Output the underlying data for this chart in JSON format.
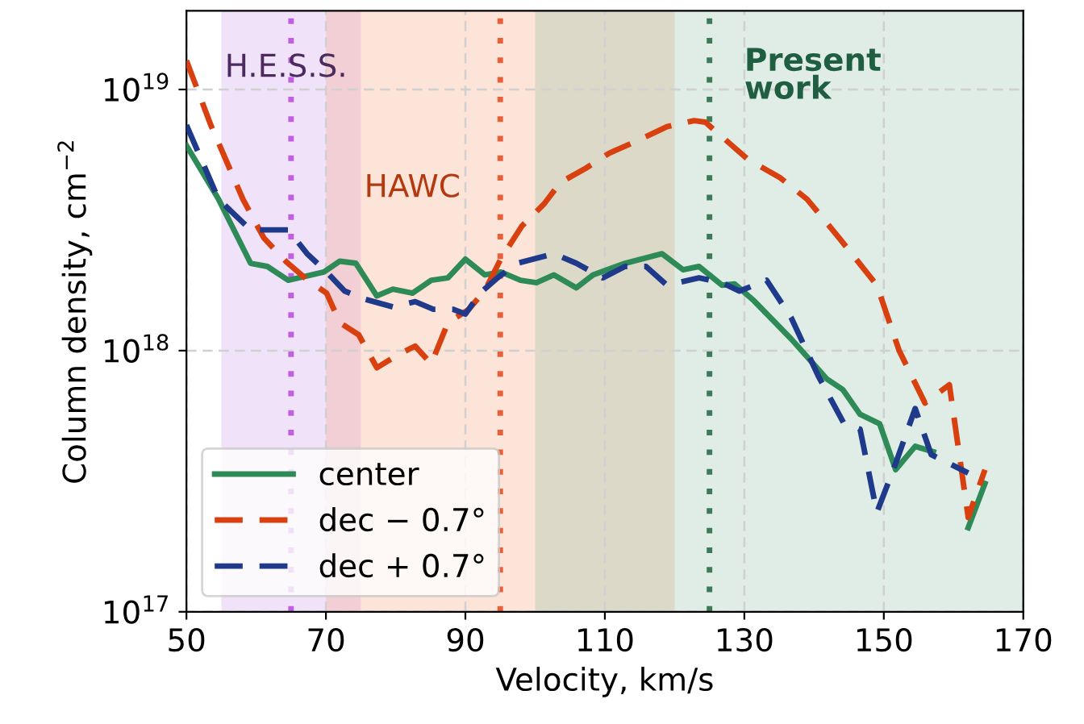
{
  "chart_data": {
    "type": "line",
    "xlabel": "Velocity, km/s",
    "ylabel": "Column density, cm$^{−2}$",
    "log": "y",
    "xlim": [
      50,
      170
    ],
    "ylim": [
      1e+17,
      2e+19
    ],
    "xticks": [
      50,
      70,
      90,
      110,
      130,
      150,
      170
    ],
    "yticks": [
      {
        "value": 1e+17,
        "label": "10$^{17}$"
      },
      {
        "value": 1e+18,
        "label": "10$^{18}$"
      },
      {
        "value": 1e+19,
        "label": "10$^{19}$"
      }
    ],
    "grid": true,
    "legend": "bottom left",
    "marker": "none",
    "bands": [
      {
        "axis": "x",
        "from": 55,
        "to": 75,
        "label": "H.E.S.S.",
        "color": "#c58ee6"
      },
      {
        "axis": "x",
        "from": 70,
        "to": 120,
        "label": "HAWC",
        "color": "#f79466"
      },
      {
        "axis": "x",
        "from": 100,
        "to": 170,
        "label": "Present work",
        "color": "#80b89a"
      }
    ],
    "ref_lines": [
      {
        "axis": "x",
        "value": 65,
        "color": "#c060e0",
        "line_style": "dotted"
      },
      {
        "axis": "x",
        "value": 95,
        "color": "#e8603a",
        "line_style": "dotted"
      },
      {
        "axis": "x",
        "value": 125,
        "color": "#3d7a5a",
        "line_style": "dotted"
      }
    ],
    "series": [
      {
        "name": "center",
        "color": "#2e8b57",
        "line_style": "solid",
        "x": [
          50,
          54.6,
          59.2,
          61.6,
          64.6,
          69.7,
          72,
          74.3,
          77.3,
          79.6,
          82.4,
          85.1,
          87.5,
          90,
          92.8,
          95.1,
          97.9,
          100.2,
          102.7,
          105.9,
          108.3,
          112.9,
          118.2,
          121.2,
          123.5,
          126.8,
          128.6,
          131.4,
          136.7,
          141.8,
          144.1,
          146.6,
          149.4,
          151.7,
          154.5,
          157.1,
          158,
          162.1,
          164.5
        ],
        "values": [
          6.1e+18,
          3.8e+18,
          2.16e+18,
          2.1e+18,
          1.86e+18,
          2e+18,
          2.2e+18,
          2.16e+18,
          1.62e+18,
          1.72e+18,
          1.66e+18,
          1.86e+18,
          1.9e+18,
          2.24e+18,
          1.95e+18,
          2e+18,
          1.86e+18,
          1.82e+18,
          1.95e+18,
          1.74e+18,
          1.95e+18,
          2.16e+18,
          2.35e+18,
          2.04e+18,
          2.1e+18,
          1.78e+18,
          1.8e+18,
          1.55e+18,
          1.11e+18,
          7.8e+17,
          7.1e+17,
          5.7e+17,
          5.25e+17,
          3.5e+17,
          4.3e+17,
          4.1e+17,
          null,
          2.1e+17,
          3.1e+17
        ]
      },
      {
        "name": "dec − 0.7°",
        "color": "#d9400f",
        "line_style": "dashed",
        "x": [
          50,
          53.5,
          58.1,
          61.1,
          64.3,
          67.3,
          70.1,
          72,
          74.7,
          77.3,
          80.5,
          82.8,
          85.1,
          87.5,
          90.5,
          92.8,
          95.1,
          98.1,
          101.3,
          103.6,
          107.3,
          110.6,
          114.3,
          118.9,
          122.8,
          124.4,
          130.5,
          135.1,
          139,
          143.6,
          149,
          152.2,
          155.9,
          159.4,
          162.1,
          164.5
        ],
        "values": [
          1.29e+19,
          7.3e+18,
          3.8e+18,
          2.7e+18,
          2.19e+18,
          1.87e+18,
          1.66e+18,
          1.28e+18,
          1.15e+18,
          8.6e+17,
          9.7e+17,
          1.04e+18,
          8.9e+17,
          1.28e+18,
          1.44e+18,
          1.7e+18,
          2.25e+18,
          3e+18,
          3.65e+18,
          4.4e+18,
          5e+18,
          5.7e+18,
          6.3e+18,
          7.2e+18,
          7.6e+18,
          7.5e+18,
          5.4e+18,
          4.6e+18,
          3.8e+18,
          2.7e+18,
          1.78e+18,
          1e+18,
          6.3e+17,
          7.4e+17,
          2.3e+17,
          3.5e+17
        ]
      },
      {
        "name": "dec + 0.7°",
        "color": "#1f3a8a",
        "line_style": "dashed",
        "x": [
          50,
          54.6,
          59.2,
          61.6,
          64.6,
          67.3,
          70.1,
          72.7,
          75.4,
          79.6,
          82.8,
          85.4,
          88.2,
          90,
          92.1,
          94.6,
          97.4,
          102.7,
          105.9,
          109.7,
          112.9,
          115.9,
          118.9,
          123.5,
          126.8,
          129.3,
          133.2,
          136.7,
          140.6,
          144.3,
          146.6,
          149,
          151.7,
          154.5,
          156.8,
          162.1
        ],
        "values": [
          7.3e+18,
          3.8e+18,
          2.9e+18,
          2.9e+18,
          2.9e+18,
          2.35e+18,
          2e+18,
          1.69e+18,
          1.58e+18,
          1.47e+18,
          1.54e+18,
          1.44e+18,
          1.44e+18,
          1.38e+18,
          1.66e+18,
          1.9e+18,
          2.16e+18,
          2.35e+18,
          2.16e+18,
          1.9e+18,
          2.1e+18,
          2.1e+18,
          1.78e+18,
          1.9e+18,
          1.82e+18,
          1.69e+18,
          1.86e+18,
          1.34e+18,
          8e+17,
          5.25e+17,
          5e+17,
          2.4e+17,
          3.7e+17,
          6e+17,
          4e+17,
          3.4e+17
        ]
      }
    ]
  }
}
